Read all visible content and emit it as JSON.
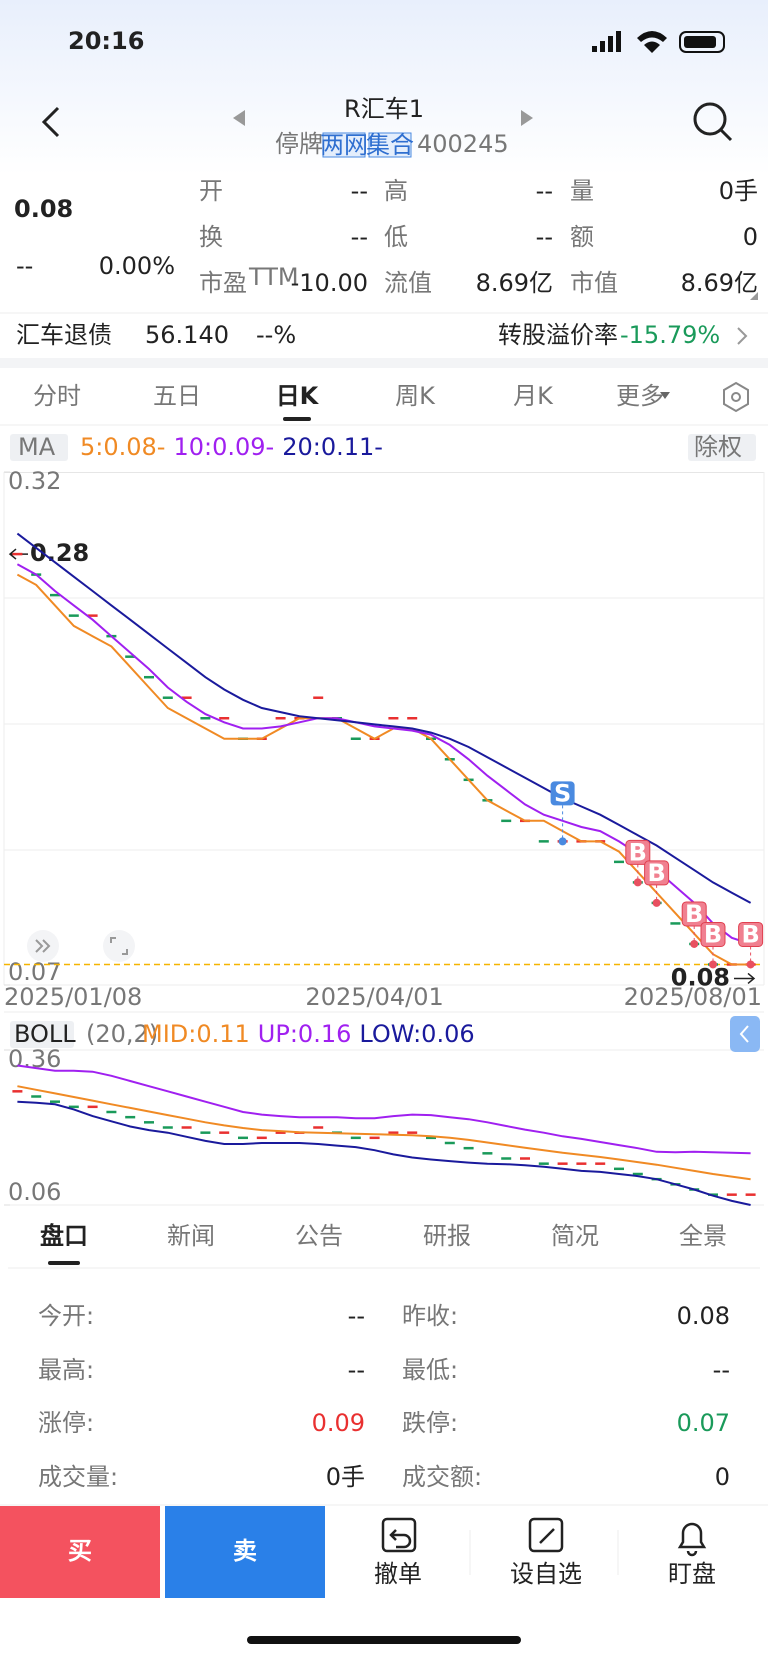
{
  "status_bar": {
    "time": "20:16"
  },
  "header": {
    "title": "R汇车1",
    "status": "停牌",
    "tags": [
      "两网",
      "集合"
    ],
    "code": "400245"
  },
  "quote": {
    "price": "0.08",
    "change": "--",
    "change_pct": "0.00%",
    "fields": [
      {
        "label": "开",
        "value": "--"
      },
      {
        "label": "高",
        "value": "--"
      },
      {
        "label": "量",
        "value": "0手"
      },
      {
        "label": "换",
        "value": "--"
      },
      {
        "label": "低",
        "value": "--"
      },
      {
        "label": "额",
        "value": "0"
      },
      {
        "label": "市盈",
        "sup": "TTM",
        "value": "-10.00"
      },
      {
        "label": "流值",
        "value": "8.69亿"
      },
      {
        "label": "市值",
        "value": "8.69亿"
      }
    ]
  },
  "bond": {
    "name": "汇车退债",
    "price": "56.140",
    "pct": "--%",
    "premium_label": "转股溢价率",
    "premium": "-15.79%"
  },
  "period_tabs": [
    "分时",
    "五日",
    "日K",
    "周K",
    "月K",
    "更多"
  ],
  "chart_data": [
    {
      "type": "kline",
      "indicator": "MA",
      "adjust": "除权",
      "categories": [
        "2025/01/08",
        null,
        null,
        null,
        null,
        null,
        null,
        null,
        null,
        null,
        null,
        null,
        null,
        null,
        null,
        null,
        null,
        null,
        null,
        "2025/04/01",
        null,
        null,
        null,
        null,
        null,
        null,
        null,
        null,
        null,
        null,
        null,
        null,
        null,
        null,
        null,
        null,
        null,
        null,
        null,
        "2025/08/01"
      ],
      "values": [
        0.28,
        0.27,
        0.26,
        0.25,
        0.25,
        0.24,
        0.23,
        0.22,
        0.21,
        0.21,
        0.2,
        0.2,
        0.19,
        0.19,
        0.2,
        0.2,
        0.21,
        0.2,
        0.19,
        0.19,
        0.2,
        0.2,
        0.19,
        0.18,
        0.17,
        0.16,
        0.15,
        0.15,
        0.14,
        0.14,
        0.14,
        0.14,
        0.13,
        0.12,
        0.11,
        0.1,
        0.09,
        0.08,
        0.08,
        0.08
      ],
      "series": [
        {
          "name": "5:0.08-",
          "color": "#f08a24",
          "values": [
            0.27,
            0.265,
            0.255,
            0.245,
            0.24,
            0.235,
            0.225,
            0.215,
            0.205,
            0.2,
            0.195,
            0.19,
            0.19,
            0.19,
            0.195,
            0.2,
            0.2,
            0.2,
            0.195,
            0.19,
            0.195,
            0.195,
            0.19,
            0.18,
            0.17,
            0.16,
            0.155,
            0.15,
            0.15,
            0.145,
            0.14,
            0.14,
            0.135,
            0.125,
            0.115,
            0.105,
            0.095,
            0.085,
            0.08,
            0.08
          ]
        },
        {
          "name": "10:0.09-",
          "color": "#a020f0",
          "values": [
            0.275,
            0.27,
            0.262,
            0.255,
            0.248,
            0.24,
            0.232,
            0.224,
            0.215,
            0.208,
            0.202,
            0.198,
            0.195,
            0.195,
            0.196,
            0.198,
            0.2,
            0.2,
            0.198,
            0.196,
            0.195,
            0.194,
            0.192,
            0.187,
            0.18,
            0.172,
            0.165,
            0.158,
            0.153,
            0.15,
            0.147,
            0.145,
            0.14,
            0.134,
            0.126,
            0.118,
            0.11,
            0.1,
            0.093,
            0.09
          ]
        },
        {
          "name": "20:0.11-",
          "color": "#1a1a9c",
          "values": [
            0.29,
            0.283,
            0.276,
            0.269,
            0.262,
            0.255,
            0.248,
            0.241,
            0.234,
            0.227,
            0.22,
            0.214,
            0.209,
            0.205,
            0.203,
            0.201,
            0.2,
            0.199,
            0.198,
            0.197,
            0.196,
            0.195,
            0.193,
            0.19,
            0.186,
            0.181,
            0.176,
            0.171,
            0.166,
            0.161,
            0.157,
            0.153,
            0.148,
            0.143,
            0.138,
            0.132,
            0.126,
            0.12,
            0.115,
            0.11
          ]
        }
      ],
      "ylim": [
        0.07,
        0.32
      ],
      "yticks": [
        0.07,
        0.32
      ],
      "max_marker": 0.28,
      "last_marker": 0.08,
      "signals": [
        {
          "label": "S",
          "x": 29
        },
        {
          "label": "B",
          "x": 33
        },
        {
          "label": "B",
          "x": 34
        },
        {
          "label": "B",
          "x": 36
        },
        {
          "label": "B",
          "x": 37
        },
        {
          "label": "B",
          "x": 39
        }
      ]
    },
    {
      "type": "kline",
      "indicator": "BOLL",
      "params": "(20,2)",
      "values": [
        0.28,
        0.27,
        0.26,
        0.25,
        0.25,
        0.24,
        0.23,
        0.22,
        0.21,
        0.21,
        0.2,
        0.2,
        0.19,
        0.19,
        0.2,
        0.2,
        0.21,
        0.2,
        0.19,
        0.19,
        0.2,
        0.2,
        0.19,
        0.18,
        0.17,
        0.16,
        0.15,
        0.15,
        0.14,
        0.14,
        0.14,
        0.14,
        0.13,
        0.12,
        0.11,
        0.1,
        0.09,
        0.08,
        0.08,
        0.08
      ],
      "series": [
        {
          "name": "MID:0.11",
          "color": "#f08a24",
          "values": [
            0.29,
            0.283,
            0.276,
            0.269,
            0.262,
            0.255,
            0.248,
            0.241,
            0.234,
            0.227,
            0.22,
            0.214,
            0.209,
            0.205,
            0.203,
            0.201,
            0.2,
            0.199,
            0.198,
            0.197,
            0.196,
            0.195,
            0.193,
            0.19,
            0.186,
            0.181,
            0.176,
            0.171,
            0.166,
            0.161,
            0.157,
            0.153,
            0.148,
            0.143,
            0.138,
            0.132,
            0.126,
            0.12,
            0.115,
            0.11
          ]
        },
        {
          "name": "UP:0.16",
          "color": "#a020f0",
          "values": [
            0.33,
            0.325,
            0.32,
            0.32,
            0.318,
            0.31,
            0.3,
            0.29,
            0.28,
            0.27,
            0.26,
            0.25,
            0.24,
            0.235,
            0.232,
            0.23,
            0.23,
            0.23,
            0.228,
            0.228,
            0.232,
            0.235,
            0.234,
            0.23,
            0.226,
            0.22,
            0.213,
            0.206,
            0.2,
            0.193,
            0.188,
            0.182,
            0.176,
            0.17,
            0.163,
            0.162,
            0.163,
            0.162,
            0.161,
            0.16
          ]
        },
        {
          "name": "LOW:0.06",
          "color": "#1a1a9c",
          "values": [
            0.26,
            0.258,
            0.255,
            0.245,
            0.232,
            0.222,
            0.212,
            0.205,
            0.2,
            0.192,
            0.184,
            0.178,
            0.178,
            0.18,
            0.18,
            0.18,
            0.178,
            0.175,
            0.172,
            0.166,
            0.158,
            0.152,
            0.148,
            0.145,
            0.142,
            0.14,
            0.139,
            0.137,
            0.134,
            0.13,
            0.126,
            0.124,
            0.12,
            0.116,
            0.11,
            0.1,
            0.09,
            0.078,
            0.068,
            0.06
          ]
        }
      ],
      "ylim": [
        0.06,
        0.36
      ],
      "yticks": [
        0.06,
        0.36
      ]
    }
  ],
  "section_tabs": [
    "盘口",
    "新闻",
    "公告",
    "研报",
    "简况",
    "全景"
  ],
  "table": {
    "rows": [
      [
        "今开:",
        "--",
        "昨收:",
        "0.08"
      ],
      [
        "最高:",
        "--",
        "最低:",
        "--"
      ],
      [
        "涨停:",
        "0.09",
        "跌停:",
        "0.07"
      ],
      [
        "成交量:",
        "0手",
        "成交额:",
        "0"
      ]
    ]
  },
  "actions": {
    "buy": "买",
    "sell": "卖",
    "tools": [
      "撤单",
      "设自选",
      "盯盘"
    ]
  }
}
